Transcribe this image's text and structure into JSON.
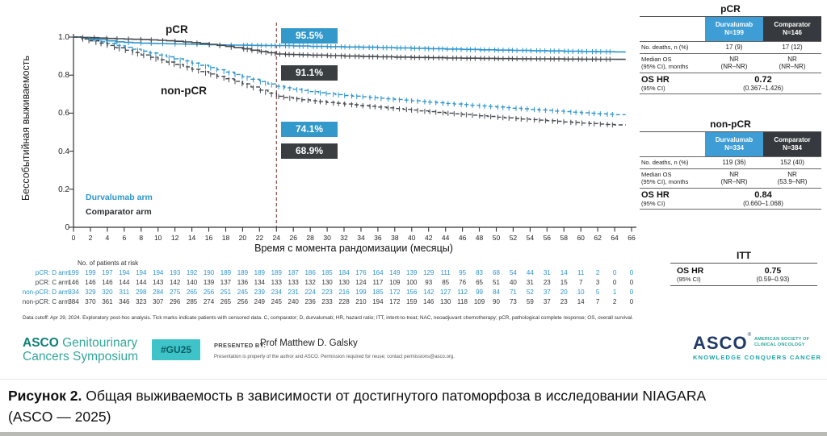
{
  "slide": {
    "colors": {
      "durvalumab_blue": "#2e95cc",
      "comparator_dark": "#3f4347",
      "header_blue": "#3f9dd5",
      "header_dark": "#36393d",
      "landmark_line": "#8a4a45",
      "gu25_box": "#3ec3c8",
      "asco_teal": "#19a3a8",
      "asco_navy": "#1f3a66"
    },
    "plot": {
      "curve_labels": {
        "pcr": "pCR",
        "nonpcr": "non-pCR"
      },
      "legend": [
        {
          "label": "Durvalumab arm",
          "color": "#2e95cc"
        },
        {
          "label": "Comparator arm",
          "color": "#2b2e31"
        }
      ],
      "badges": [
        {
          "text": "95.5%",
          "bg": "#3399cb"
        },
        {
          "text": "91.1%",
          "bg": "#3a3e41"
        },
        {
          "text": "74.1%",
          "bg": "#3399cb"
        },
        {
          "text": "68.9%",
          "bg": "#3a3e41"
        }
      ]
    },
    "at_risk": {
      "title": "No. of patients at risk",
      "rows": [
        {
          "label": "pCR: D arm",
          "color": "#2e95cc",
          "values": [
            199,
            199,
            197,
            194,
            194,
            194,
            193,
            192,
            190,
            189,
            189,
            189,
            189,
            187,
            186,
            185,
            184,
            176,
            164,
            149,
            139,
            129,
            111,
            95,
            83,
            68,
            54,
            44,
            31,
            14,
            11,
            2,
            0,
            0
          ]
        },
        {
          "label": "pCR: C arm",
          "color": "#3c4043",
          "values": [
            146,
            146,
            146,
            144,
            144,
            143,
            142,
            140,
            139,
            137,
            136,
            134,
            133,
            133,
            132,
            130,
            130,
            124,
            117,
            109,
            100,
            93,
            85,
            76,
            65,
            51,
            40,
            31,
            23,
            15,
            7,
            3,
            0,
            0
          ]
        },
        {
          "label": "non-pCR: D arm",
          "color": "#2e95cc",
          "values": [
            334,
            329,
            320,
            311,
            298,
            284,
            275,
            265,
            256,
            251,
            245,
            239,
            234,
            231,
            224,
            223,
            216,
            199,
            185,
            172,
            156,
            142,
            127,
            112,
            99,
            84,
            71,
            52,
            37,
            20,
            10,
            5,
            1,
            0
          ]
        },
        {
          "label": "non-pCR: C arm",
          "color": "#3c4043",
          "values": [
            384,
            370,
            361,
            346,
            323,
            307,
            296,
            285,
            274,
            265,
            256,
            249,
            245,
            240,
            236,
            233,
            228,
            210,
            194,
            172,
            159,
            146,
            130,
            118,
            109,
            90,
            73,
            59,
            37,
            23,
            14,
            7,
            2,
            0
          ]
        }
      ]
    },
    "footnote": "Data cutoff: Apr 29, 2024. Exploratory post-hoc analysis. Tick marks indicate patients with censored data. C, comparator; D, durvalumab; HR, hazard ratio; ITT, intent-to-treat; NAC, neoadjuvant chemotherapy; pCR, pathological complete response; OS, overall survival.",
    "summary_tables": [
      {
        "title": "pCR",
        "col1": "Durvalumab\nN=199",
        "col2": "Comparator\nN=146",
        "deaths_label": "No. deaths, n (%)",
        "deaths_v1": "17 (9)",
        "deaths_v2": "17 (12)",
        "median_label": "Median OS\n(95% CI), months",
        "median_v1": "NR\n(NR–NR)",
        "median_v2": "NR\n(NR–NR)",
        "hr_label": "OS HR",
        "hr_ci_label": "(95% CI)",
        "hr_value": "0.72",
        "hr_ci_value": "(0.367–1.426)"
      },
      {
        "title": "non-pCR",
        "col1": "Durvalumab\nN=334",
        "col2": "Comparator\nN=384",
        "deaths_label": "No. deaths, n (%)",
        "deaths_v1": "119 (36)",
        "deaths_v2": "152 (40)",
        "median_label": "Median OS\n(95% CI), months",
        "median_v1": "NR\n(NR–NR)",
        "median_v2": "NR\n(53.9–NR)",
        "hr_label": "OS HR",
        "hr_ci_label": "(95% CI)",
        "hr_value": "0.84",
        "hr_ci_value": "(0.660–1.068)"
      }
    ],
    "itt": {
      "title": "ITT",
      "hr_label": "OS HR",
      "ci_label": "(95% CI)",
      "hr_value": "0.75",
      "ci_value": "(0.59–0.93)"
    },
    "footer": {
      "left_logo_asco": "ASCO",
      "left_logo_line1": "Genitourinary",
      "left_logo_line2": "Cancers Symposium",
      "hashtag": "#GU25",
      "presented_by_label": "PRESENTED BY:",
      "presenter": "Prof Matthew D. Galsky",
      "permission": "Presentation is property of the author and ASCO. Permission required for reuse; contact permissions@asco.org.",
      "asco_word": "ASCO",
      "asco_reg": "®",
      "asco_society": "AMERICAN SOCIETY OF CLINICAL ONCOLOGY",
      "asco_tagline": "KNOWLEDGE CONQUERS CANCER"
    }
  },
  "caption": {
    "bold": "Рисунок 2.",
    "text": " Общая выживаемость в зависимости от достигнутого патоморфоза в исследовании NIAGARA",
    "line2": "(ASCO — 2025)"
  },
  "chart_data": {
    "type": "line",
    "subtype": "kaplan-meier",
    "title": "",
    "xlabel": "Время с момента рандомизации (месяцы)",
    "ylabel": "Бессобытийная выживаемость",
    "xlim": [
      0,
      66
    ],
    "ylim": [
      0,
      1.0
    ],
    "x_ticks": [
      0,
      2,
      4,
      6,
      8,
      10,
      12,
      14,
      16,
      18,
      20,
      22,
      24,
      26,
      28,
      30,
      32,
      34,
      36,
      38,
      40,
      42,
      44,
      46,
      48,
      50,
      52,
      54,
      56,
      58,
      60,
      62,
      64,
      66
    ],
    "y_ticks": [
      "1.0",
      "0.8",
      "0.6",
      "0.4",
      "0.2",
      "0"
    ],
    "grid": false,
    "landmark": {
      "month": 24,
      "labels": [
        "95.5%",
        "91.1%",
        "74.1%",
        "68.9%"
      ]
    },
    "series": [
      {
        "name": "pCR — Durvalumab arm (N=199)",
        "color": "#2e95cc",
        "dashed": false,
        "points": [
          [
            0,
            1.0
          ],
          [
            1,
            0.996
          ],
          [
            2,
            0.991
          ],
          [
            3,
            0.986
          ],
          [
            4,
            0.98
          ],
          [
            5,
            0.975
          ],
          [
            6,
            0.972
          ],
          [
            8,
            0.968
          ],
          [
            10,
            0.966
          ],
          [
            12,
            0.964
          ],
          [
            14,
            0.962
          ],
          [
            16,
            0.96
          ],
          [
            18,
            0.958
          ],
          [
            20,
            0.957
          ],
          [
            22,
            0.956
          ],
          [
            24,
            0.955
          ],
          [
            28,
            0.951
          ],
          [
            32,
            0.948
          ],
          [
            36,
            0.945
          ],
          [
            40,
            0.941
          ],
          [
            44,
            0.937
          ],
          [
            48,
            0.933
          ],
          [
            52,
            0.93
          ],
          [
            56,
            0.927
          ],
          [
            60,
            0.924
          ],
          [
            64,
            0.922
          ]
        ]
      },
      {
        "name": "pCR — Comparator arm (N=146)",
        "color": "#45494d",
        "dashed": false,
        "points": [
          [
            0,
            1.0
          ],
          [
            2,
            0.997
          ],
          [
            4,
            0.993
          ],
          [
            6,
            0.99
          ],
          [
            8,
            0.987
          ],
          [
            10,
            0.983
          ],
          [
            12,
            0.978
          ],
          [
            14,
            0.971
          ],
          [
            16,
            0.962
          ],
          [
            18,
            0.951
          ],
          [
            20,
            0.938
          ],
          [
            22,
            0.924
          ],
          [
            24,
            0.911
          ],
          [
            26,
            0.908
          ],
          [
            28,
            0.905
          ],
          [
            32,
            0.9
          ],
          [
            36,
            0.896
          ],
          [
            40,
            0.893
          ],
          [
            44,
            0.89
          ],
          [
            48,
            0.888
          ],
          [
            52,
            0.886
          ],
          [
            56,
            0.885
          ],
          [
            60,
            0.884
          ],
          [
            64,
            0.883
          ]
        ]
      },
      {
        "name": "non-pCR — Durvalumab arm (N=334)",
        "color": "#2e95cc",
        "dashed": true,
        "points": [
          [
            0,
            1.0
          ],
          [
            2,
            0.985
          ],
          [
            4,
            0.966
          ],
          [
            6,
            0.946
          ],
          [
            8,
            0.926
          ],
          [
            10,
            0.906
          ],
          [
            12,
            0.886
          ],
          [
            14,
            0.863
          ],
          [
            16,
            0.84
          ],
          [
            18,
            0.816
          ],
          [
            20,
            0.791
          ],
          [
            22,
            0.766
          ],
          [
            24,
            0.741
          ],
          [
            26,
            0.726
          ],
          [
            28,
            0.713
          ],
          [
            30,
            0.702
          ],
          [
            32,
            0.693
          ],
          [
            34,
            0.686
          ],
          [
            36,
            0.679
          ],
          [
            38,
            0.672
          ],
          [
            40,
            0.665
          ],
          [
            42,
            0.658
          ],
          [
            44,
            0.651
          ],
          [
            46,
            0.645
          ],
          [
            48,
            0.638
          ],
          [
            50,
            0.632
          ],
          [
            52,
            0.626
          ],
          [
            54,
            0.62
          ],
          [
            56,
            0.614
          ],
          [
            58,
            0.608
          ],
          [
            60,
            0.602
          ],
          [
            62,
            0.597
          ],
          [
            64,
            0.592
          ]
        ]
      },
      {
        "name": "non-pCR — Comparator arm (N=384)",
        "color": "#45494d",
        "dashed": true,
        "points": [
          [
            0,
            1.0
          ],
          [
            2,
            0.98
          ],
          [
            4,
            0.956
          ],
          [
            6,
            0.931
          ],
          [
            8,
            0.906
          ],
          [
            10,
            0.881
          ],
          [
            12,
            0.856
          ],
          [
            14,
            0.831
          ],
          [
            16,
            0.806
          ],
          [
            18,
            0.781
          ],
          [
            20,
            0.754
          ],
          [
            22,
            0.721
          ],
          [
            24,
            0.689
          ],
          [
            26,
            0.676
          ],
          [
            28,
            0.665
          ],
          [
            30,
            0.656
          ],
          [
            32,
            0.648
          ],
          [
            34,
            0.64
          ],
          [
            36,
            0.632
          ],
          [
            38,
            0.624
          ],
          [
            40,
            0.616
          ],
          [
            42,
            0.608
          ],
          [
            44,
            0.6
          ],
          [
            46,
            0.593
          ],
          [
            48,
            0.586
          ],
          [
            50,
            0.579
          ],
          [
            52,
            0.572
          ],
          [
            54,
            0.566
          ],
          [
            56,
            0.56
          ],
          [
            58,
            0.554
          ],
          [
            60,
            0.548
          ],
          [
            62,
            0.543
          ],
          [
            64,
            0.538
          ]
        ]
      }
    ],
    "legend_position": "lower-left",
    "risk_table_months_step": 2
  }
}
